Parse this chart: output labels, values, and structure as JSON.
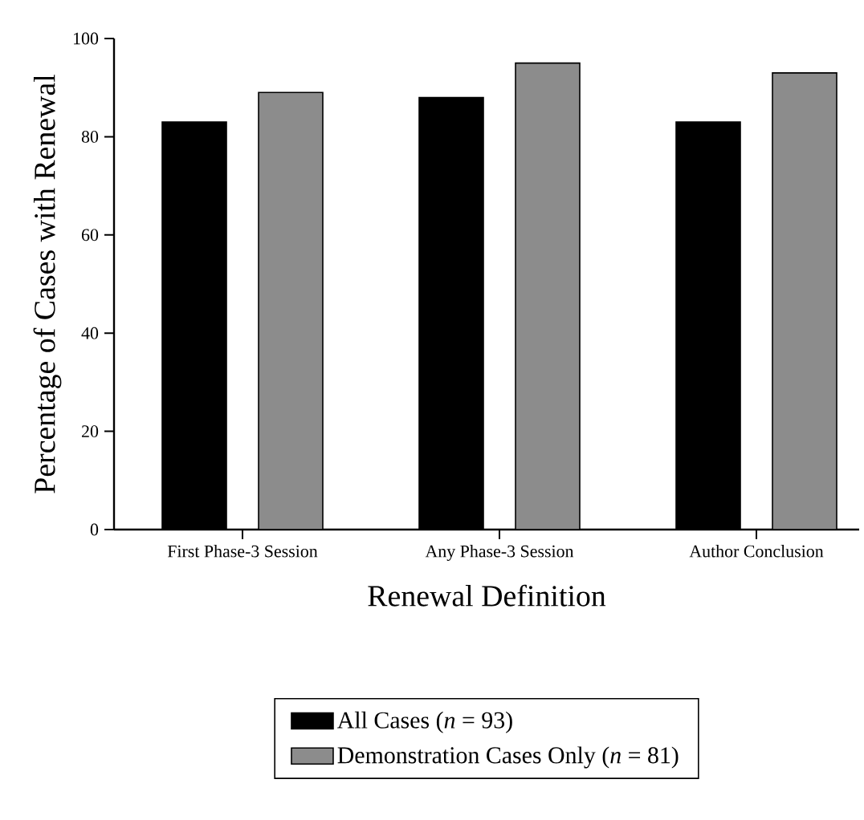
{
  "chart_data": {
    "type": "bar",
    "xlabel": "Renewal Definition",
    "ylabel": "Percentage of Cases with Renewal",
    "categories": [
      "First Phase-3 Session",
      "Any Phase-3 Session",
      "Author Conclusion"
    ],
    "series": [
      {
        "name": "All Cases (*n* = 93)",
        "color": "#000000",
        "values": [
          83,
          88,
          83
        ]
      },
      {
        "name": "Demonstration Cases Only (*n* = 81)",
        "color": "#8c8c8c",
        "values": [
          89,
          95,
          93
        ]
      }
    ],
    "ylim": [
      0,
      100
    ],
    "yticks": [
      0,
      20,
      40,
      60,
      80,
      100
    ],
    "legend": "bottom"
  }
}
